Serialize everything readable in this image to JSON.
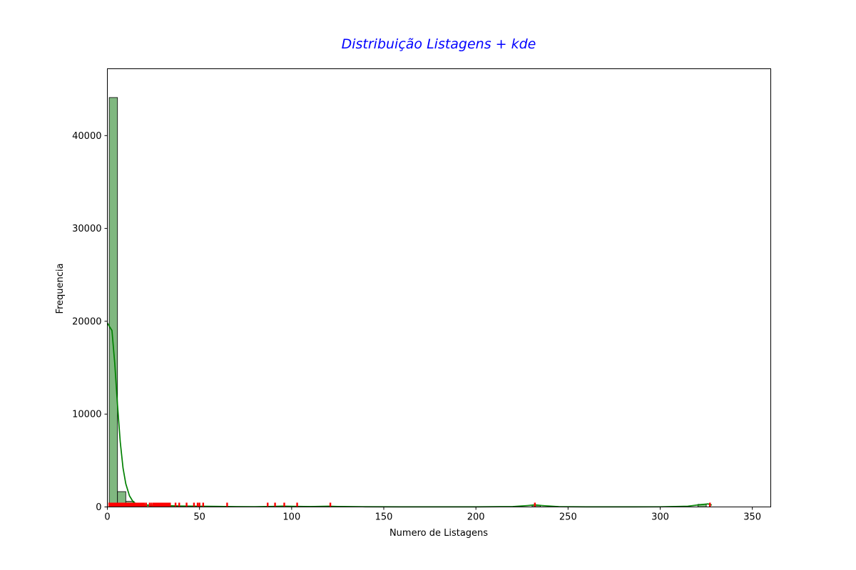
{
  "chart_data": {
    "type": "bar",
    "title": "Distribuição Listagens + kde",
    "xlabel": "Numero de Listagens",
    "ylabel": "Frequencia",
    "xlim": [
      0,
      360
    ],
    "ylim": [
      0,
      47200
    ],
    "x_ticks": [
      0,
      50,
      100,
      150,
      200,
      250,
      300,
      350
    ],
    "y_ticks": [
      0,
      10000,
      20000,
      30000,
      40000
    ],
    "grid": false,
    "colors": {
      "bar_fill": "#80b880",
      "bar_edge": "#000000",
      "kde_line": "#008000",
      "rug": "#ff0000",
      "title": "#0000ff"
    },
    "bin_width": 4.5,
    "bins": [
      {
        "x0": 1.0,
        "count": 44100
      },
      {
        "x0": 5.5,
        "count": 1650
      },
      {
        "x0": 10.0,
        "count": 600
      },
      {
        "x0": 14.5,
        "count": 380
      },
      {
        "x0": 19.0,
        "count": 220
      },
      {
        "x0": 23.5,
        "count": 150
      },
      {
        "x0": 28.0,
        "count": 200
      },
      {
        "x0": 32.5,
        "count": 120
      },
      {
        "x0": 37.0,
        "count": 60
      },
      {
        "x0": 41.5,
        "count": 50
      },
      {
        "x0": 46.0,
        "count": 70
      },
      {
        "x0": 50.5,
        "count": 40
      },
      {
        "x0": 64.0,
        "count": 20
      },
      {
        "x0": 86.5,
        "count": 20
      },
      {
        "x0": 91.0,
        "count": 25
      },
      {
        "x0": 95.5,
        "count": 30
      },
      {
        "x0": 100.0,
        "count": 15
      },
      {
        "x0": 118.0,
        "count": 60
      },
      {
        "x0": 230.5,
        "count": 180
      },
      {
        "x0": 320.5,
        "count": 280
      }
    ],
    "kde": [
      [
        0,
        19800
      ],
      [
        2.5,
        19000
      ],
      [
        4,
        15500
      ],
      [
        5.5,
        11000
      ],
      [
        7,
        7000
      ],
      [
        8.5,
        4200
      ],
      [
        10,
        2500
      ],
      [
        12,
        1200
      ],
      [
        14,
        550
      ],
      [
        16,
        300
      ],
      [
        20,
        200
      ],
      [
        25,
        170
      ],
      [
        30,
        160
      ],
      [
        35,
        130
      ],
      [
        40,
        100
      ],
      [
        50,
        80
      ],
      [
        60,
        60
      ],
      [
        70,
        30
      ],
      [
        80,
        25
      ],
      [
        90,
        60
      ],
      [
        95,
        90
      ],
      [
        100,
        70
      ],
      [
        110,
        40
      ],
      [
        120,
        80
      ],
      [
        125,
        50
      ],
      [
        140,
        20
      ],
      [
        160,
        10
      ],
      [
        180,
        8
      ],
      [
        200,
        12
      ],
      [
        220,
        40
      ],
      [
        228,
        150
      ],
      [
        232,
        220
      ],
      [
        236,
        150
      ],
      [
        245,
        30
      ],
      [
        260,
        10
      ],
      [
        280,
        8
      ],
      [
        300,
        15
      ],
      [
        315,
        80
      ],
      [
        322,
        250
      ],
      [
        326,
        330
      ],
      [
        328,
        200
      ]
    ],
    "rug": [
      1,
      1.5,
      2,
      2.5,
      3,
      3.5,
      4,
      4.5,
      5,
      5.5,
      6,
      6.5,
      7,
      7.5,
      8,
      8.5,
      9,
      9.5,
      10,
      10.5,
      11,
      11.5,
      12,
      12.5,
      13,
      13.5,
      14,
      14.5,
      15,
      15.5,
      16,
      16.5,
      17,
      17.5,
      18,
      18.5,
      19,
      19.5,
      20,
      21,
      23,
      24,
      25,
      25.5,
      26,
      26.5,
      27,
      27.5,
      28,
      28.5,
      29,
      29.5,
      30,
      30.5,
      31,
      31.5,
      32,
      32.5,
      33,
      33.5,
      34,
      37,
      39,
      43,
      47,
      49,
      50,
      52,
      65,
      87,
      91,
      96,
      103,
      121,
      232,
      327
    ]
  }
}
